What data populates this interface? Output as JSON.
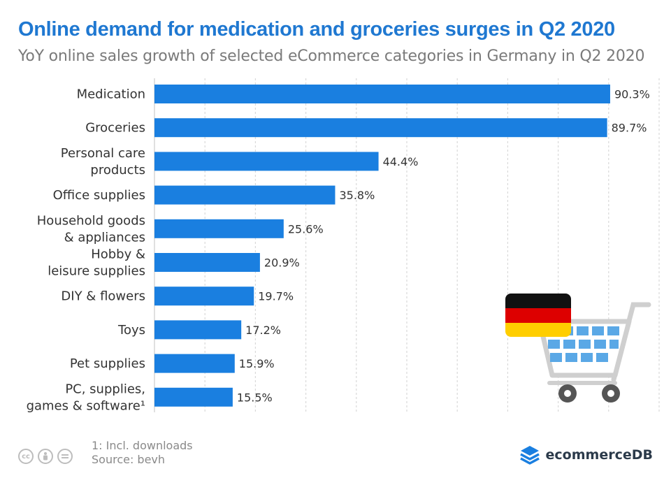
{
  "header": {
    "title": "Online demand for medication and groceries surges in Q2 2020",
    "subtitle": "YoY online sales growth of selected eCommerce categories in Germany in Q2 2020"
  },
  "chart_data": {
    "type": "bar",
    "orientation": "horizontal",
    "categories": [
      [
        "Medication"
      ],
      [
        "Groceries"
      ],
      [
        "Personal care",
        "products"
      ],
      [
        "Office supplies"
      ],
      [
        "Household goods",
        "& appliances"
      ],
      [
        "Hobby &",
        "leisure supplies"
      ],
      [
        "DIY & flowers"
      ],
      [
        "Toys"
      ],
      [
        "Pet supplies"
      ],
      [
        "PC, supplies,",
        "games & software¹"
      ]
    ],
    "values": [
      90.3,
      89.7,
      44.4,
      35.8,
      25.6,
      20.9,
      19.7,
      17.2,
      15.9,
      15.5
    ],
    "value_labels": [
      "90.3%",
      "89.7%",
      "44.4%",
      "35.8%",
      "25.6%",
      "20.9%",
      "19.7%",
      "17.2%",
      "15.9%",
      "15.5%"
    ],
    "xlim": [
      0,
      100
    ],
    "grid": "vertical dashed",
    "bar_color": "#1a7fe0"
  },
  "illustration": {
    "flag_colors": [
      "#111111",
      "#dd0000",
      "#ffce00"
    ],
    "cart_color": "#cfcfcf",
    "cart_accent": "#5aa8e6",
    "icon": "shopping-cart-with-german-flag"
  },
  "footer": {
    "license_icons": [
      "cc",
      "by",
      "nd"
    ],
    "note": "1: Incl. downloads",
    "source": "Source: bevh",
    "brand": "ecommerceDB",
    "brand_color": "#1a7fe0"
  }
}
